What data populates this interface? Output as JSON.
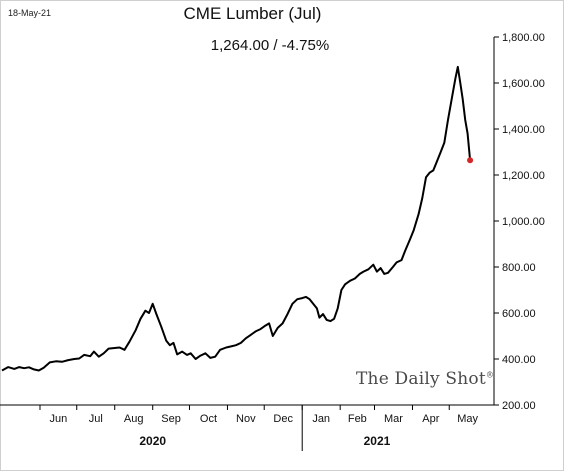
{
  "header": {
    "date_stamp": "18-May-21",
    "title": "CME Lumber (Jul)",
    "subtitle": "1,264.00  /  -4.75%"
  },
  "watermark": {
    "brand": "The Daily Shot",
    "mark": "®"
  },
  "colors": {
    "line": "#000000",
    "last_point": "#d62728",
    "axis": "#000000"
  },
  "chart_data": {
    "type": "line",
    "title": "CME Lumber (Jul)",
    "subtitle": "1,264.00  /  -4.75%",
    "xlabel": "",
    "ylabel": "",
    "x_range": [
      "2020-05-01",
      "2021-05-31"
    ],
    "ylim": [
      200,
      1800
    ],
    "y_ticks": [
      200,
      400,
      600,
      800,
      1000,
      1200,
      1400,
      1600,
      1800
    ],
    "y_tick_labels": [
      "200.00",
      "400.00",
      "600.00",
      "800.00",
      "1,000.00",
      "1,200.00",
      "1,400.00",
      "1,600.00",
      "1,800.00"
    ],
    "y_axis_side": "right",
    "grid": false,
    "legend": "none",
    "month_ticks": [
      {
        "date": "2020-06-01",
        "label": "Jun"
      },
      {
        "date": "2020-07-01",
        "label": "Jul"
      },
      {
        "date": "2020-08-01",
        "label": "Aug"
      },
      {
        "date": "2020-09-01",
        "label": "Sep"
      },
      {
        "date": "2020-10-01",
        "label": "Oct"
      },
      {
        "date": "2020-11-01",
        "label": "Nov"
      },
      {
        "date": "2020-12-01",
        "label": "Dec"
      },
      {
        "date": "2021-01-01",
        "label": "Jan"
      },
      {
        "date": "2021-02-01",
        "label": "Feb"
      },
      {
        "date": "2021-03-01",
        "label": "Mar"
      },
      {
        "date": "2021-04-01",
        "label": "Apr"
      },
      {
        "date": "2021-05-01",
        "label": "May"
      }
    ],
    "year_labels": [
      {
        "label": "2020",
        "center": "2020-09-01"
      },
      {
        "label": "2021",
        "center": "2021-03-03"
      }
    ],
    "year_divider": "2021-01-01",
    "series": [
      {
        "points": [
          [
            "2020-05-01",
            350
          ],
          [
            "2020-05-06",
            365
          ],
          [
            "2020-05-11",
            357
          ],
          [
            "2020-05-15",
            365
          ],
          [
            "2020-05-19",
            360
          ],
          [
            "2020-05-23",
            364
          ],
          [
            "2020-05-27",
            355
          ],
          [
            "2020-05-31",
            350
          ],
          [
            "2020-06-04",
            362
          ],
          [
            "2020-06-09",
            385
          ],
          [
            "2020-06-14",
            390
          ],
          [
            "2020-06-19",
            388
          ],
          [
            "2020-06-24",
            395
          ],
          [
            "2020-06-29",
            400
          ],
          [
            "2020-07-03",
            402
          ],
          [
            "2020-07-07",
            418
          ],
          [
            "2020-07-12",
            412
          ],
          [
            "2020-07-15",
            432
          ],
          [
            "2020-07-19",
            410
          ],
          [
            "2020-07-23",
            425
          ],
          [
            "2020-07-27",
            445
          ],
          [
            "2020-08-01",
            448
          ],
          [
            "2020-08-05",
            450
          ],
          [
            "2020-08-09",
            440
          ],
          [
            "2020-08-13",
            475
          ],
          [
            "2020-08-18",
            525
          ],
          [
            "2020-08-22",
            575
          ],
          [
            "2020-08-26",
            610
          ],
          [
            "2020-08-29",
            600
          ],
          [
            "2020-09-01",
            640
          ],
          [
            "2020-09-04",
            595
          ],
          [
            "2020-09-08",
            540
          ],
          [
            "2020-09-12",
            480
          ],
          [
            "2020-09-15",
            460
          ],
          [
            "2020-09-18",
            470
          ],
          [
            "2020-09-21",
            420
          ],
          [
            "2020-09-25",
            432
          ],
          [
            "2020-09-29",
            418
          ],
          [
            "2020-10-02",
            425
          ],
          [
            "2020-10-06",
            400
          ],
          [
            "2020-10-10",
            415
          ],
          [
            "2020-10-14",
            425
          ],
          [
            "2020-10-18",
            405
          ],
          [
            "2020-10-22",
            410
          ],
          [
            "2020-10-26",
            440
          ],
          [
            "2020-10-31",
            450
          ],
          [
            "2020-11-04",
            455
          ],
          [
            "2020-11-08",
            460
          ],
          [
            "2020-11-12",
            470
          ],
          [
            "2020-11-16",
            490
          ],
          [
            "2020-11-20",
            505
          ],
          [
            "2020-11-24",
            520
          ],
          [
            "2020-11-28",
            530
          ],
          [
            "2020-12-02",
            545
          ],
          [
            "2020-12-05",
            555
          ],
          [
            "2020-12-08",
            500
          ],
          [
            "2020-12-12",
            535
          ],
          [
            "2020-12-16",
            555
          ],
          [
            "2020-12-20",
            595
          ],
          [
            "2020-12-24",
            640
          ],
          [
            "2020-12-28",
            660
          ],
          [
            "2021-01-01",
            665
          ],
          [
            "2021-01-04",
            670
          ],
          [
            "2021-01-07",
            660
          ],
          [
            "2021-01-10",
            640
          ],
          [
            "2021-01-13",
            620
          ],
          [
            "2021-01-15",
            580
          ],
          [
            "2021-01-18",
            595
          ],
          [
            "2021-01-21",
            570
          ],
          [
            "2021-01-24",
            565
          ],
          [
            "2021-01-27",
            575
          ],
          [
            "2021-01-30",
            620
          ],
          [
            "2021-02-02",
            700
          ],
          [
            "2021-02-05",
            725
          ],
          [
            "2021-02-09",
            740
          ],
          [
            "2021-02-13",
            750
          ],
          [
            "2021-02-17",
            770
          ],
          [
            "2021-02-20",
            780
          ],
          [
            "2021-02-24",
            790
          ],
          [
            "2021-02-28",
            810
          ],
          [
            "2021-03-03",
            780
          ],
          [
            "2021-03-06",
            795
          ],
          [
            "2021-03-09",
            770
          ],
          [
            "2021-03-12",
            775
          ],
          [
            "2021-03-16",
            800
          ],
          [
            "2021-03-19",
            820
          ],
          [
            "2021-03-23",
            830
          ],
          [
            "2021-03-26",
            870
          ],
          [
            "2021-03-30",
            920
          ],
          [
            "2021-04-02",
            960
          ],
          [
            "2021-04-06",
            1030
          ],
          [
            "2021-04-09",
            1100
          ],
          [
            "2021-04-12",
            1190
          ],
          [
            "2021-04-15",
            1210
          ],
          [
            "2021-04-18",
            1220
          ],
          [
            "2021-04-21",
            1260
          ],
          [
            "2021-04-24",
            1300
          ],
          [
            "2021-04-27",
            1340
          ],
          [
            "2021-04-30",
            1440
          ],
          [
            "2021-05-03",
            1530
          ],
          [
            "2021-05-06",
            1620
          ],
          [
            "2021-05-08",
            1670
          ],
          [
            "2021-05-10",
            1600
          ],
          [
            "2021-05-12",
            1530
          ],
          [
            "2021-05-14",
            1440
          ],
          [
            "2021-05-16",
            1380
          ],
          [
            "2021-05-18",
            1264
          ]
        ],
        "last_value": 1264
      }
    ]
  }
}
